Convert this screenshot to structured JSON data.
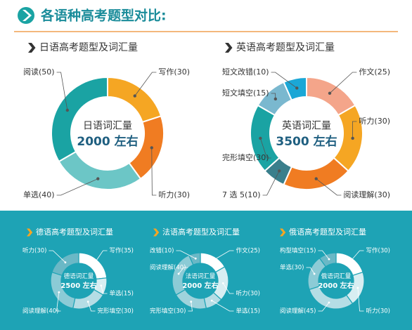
{
  "title": "各语种高考题型对比:",
  "chart_data": [
    {
      "type": "donut",
      "title": "日语高考题型及词汇量",
      "center_title": "日语词汇量",
      "center_value": "2000 左右",
      "categories": [
        "写作(30)",
        "听力(30)",
        "单选(40)",
        "阅读(50)"
      ],
      "values": [
        30,
        30,
        40,
        50
      ],
      "colors": [
        "#f5a623",
        "#f07c22",
        "#6cc6c6",
        "#1aa3a3"
      ]
    },
    {
      "type": "donut",
      "title": "英语高考题型及词汇量",
      "center_title": "英语词汇量",
      "center_value": "3500 左右",
      "categories": [
        "作文(25)",
        "听力(30)",
        "阅读理解(30)",
        "7 选 5(10)",
        "完形填空(30)",
        "短文填空(15)",
        "短文改错(10)"
      ],
      "values": [
        25,
        30,
        30,
        10,
        30,
        15,
        10
      ],
      "colors": [
        "#f4a58a",
        "#f5a623",
        "#f07c22",
        "#3a7f8c",
        "#1aa3a3",
        "#7ab8cf",
        "#1ba7d6"
      ]
    },
    {
      "type": "donut",
      "title": "德语高考题型及词汇量",
      "center_title": "德语词汇量",
      "center_value": "2500 左右",
      "categories": [
        "写作(35)",
        "单选(15)",
        "完形填空(30)",
        "阅读理解(40)",
        "听力(30)"
      ],
      "values": [
        35,
        15,
        30,
        40,
        30
      ],
      "colors": [
        "#ffffff",
        "#d8eef2",
        "#b5dde5",
        "#8ccbd6",
        "#6ab8c6"
      ]
    },
    {
      "type": "donut",
      "title": "法语高考题型及词汇量",
      "center_title": "法语词汇量",
      "center_value": "2000 左右",
      "categories": [
        "作文(25)",
        "听力(30)",
        "单选(15)",
        "完形填空(30)",
        "阅读理解(40)",
        "改错(10)"
      ],
      "values": [
        25,
        30,
        15,
        30,
        40,
        10
      ],
      "colors": [
        "#ffffff",
        "#d8eef2",
        "#b5dde5",
        "#9fd3dc",
        "#8ccbd6",
        "#6ab8c6"
      ]
    },
    {
      "type": "donut",
      "title": "俄语高考题型及词汇量",
      "center_title": "俄语词汇量",
      "center_value": "2000 左右",
      "categories": [
        "写作(30)",
        "听力(30)",
        "阅读理解(45)",
        "单选(30)",
        "构型填空(15)"
      ],
      "values": [
        30,
        30,
        45,
        30,
        15
      ],
      "colors": [
        "#ffffff",
        "#d8eef2",
        "#b5dde5",
        "#8ccbd6",
        "#6ab8c6"
      ]
    }
  ]
}
